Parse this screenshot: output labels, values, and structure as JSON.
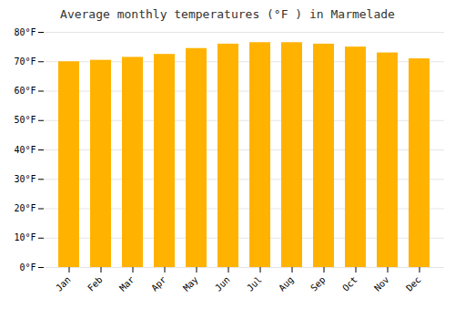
{
  "chart_data": {
    "type": "bar",
    "title": "Average monthly temperatures (°F ) in Marmelade",
    "categories": [
      "Jan",
      "Feb",
      "Mar",
      "Apr",
      "May",
      "Jun",
      "Jul",
      "Aug",
      "Sep",
      "Oct",
      "Nov",
      "Dec"
    ],
    "values": [
      70,
      70.5,
      71.5,
      72.5,
      74.5,
      76,
      76.5,
      76.5,
      76,
      75,
      73,
      71
    ],
    "color": "#FFB300",
    "ylim": [
      0,
      80
    ],
    "yticks": [
      {
        "value": 0,
        "label": "0°F"
      },
      {
        "value": 10,
        "label": "10°F"
      },
      {
        "value": 20,
        "label": "20°F"
      },
      {
        "value": 30,
        "label": "30°F"
      },
      {
        "value": 40,
        "label": "40°F"
      },
      {
        "value": 50,
        "label": "50°F"
      },
      {
        "value": 60,
        "label": "60°F"
      },
      {
        "value": 70,
        "label": "70°F"
      },
      {
        "value": 80,
        "label": "80°F"
      }
    ],
    "grid": true
  }
}
